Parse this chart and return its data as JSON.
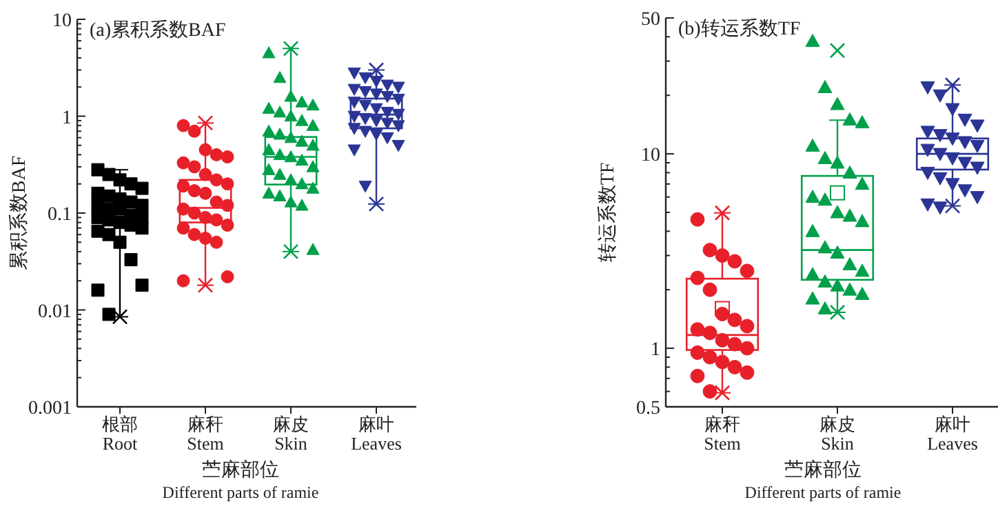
{
  "chart_data": [
    {
      "type": "box",
      "title": "(a)累积系数BAF",
      "ylabel": "累积系数BAF",
      "xlabel": "苎麻部位\nDifferent parts of ramie",
      "log": "y",
      "grid": false,
      "categories": [
        "根部\nRoot",
        "麻秆\nStem",
        "麻皮\nSkin",
        "麻叶\nLeaves"
      ],
      "colors": [
        "#000000",
        "#e8202a",
        "#00a04b",
        "#2b3595"
      ],
      "ylim": [
        0.001,
        10
      ],
      "yticks": [
        0.001,
        0.01,
        0.1,
        1,
        10
      ],
      "boxes": [
        {
          "low": 0.0085,
          "q1": 0.08,
          "median": 0.1,
          "q3": 0.136,
          "high": 0.28,
          "outliers": [
            0.0085
          ]
        },
        {
          "low": 0.018,
          "q1": 0.08,
          "median": 0.113,
          "q3": 0.22,
          "high": 0.85,
          "outliers": [
            0.018,
            0.85
          ]
        },
        {
          "low": 0.04,
          "q1": 0.197,
          "median": 0.38,
          "q3": 0.61,
          "high": 5,
          "outliers": [
            0.04,
            5
          ]
        },
        {
          "low": 0.124,
          "q1": 0.75,
          "median": 1.04,
          "q3": 1.52,
          "high": 3,
          "outliers": [
            0.124,
            3
          ]
        }
      ],
      "series": [
        {
          "type": "scatter",
          "color": "#000000",
          "marker": "square",
          "x": [
            "根部\nRoot",
            "根部\nRoot",
            "根部\nRoot",
            "根部\nRoot",
            "根部\nRoot",
            "根部\nRoot",
            "根部\nRoot",
            "根部\nRoot",
            "根部\nRoot",
            "根部\nRoot",
            "根部\nRoot",
            "根部\nRoot",
            "根部\nRoot",
            "根部\nRoot",
            "根部\nRoot",
            "根部\nRoot",
            "根部\nRoot",
            "根部\nRoot",
            "根部\nRoot",
            "根部\nRoot",
            "根部\nRoot",
            "根部\nRoot",
            "根部\nRoot",
            "根部\nRoot",
            "根部\nRoot",
            "根部\nRoot",
            "根部\nRoot"
          ],
          "values": [
            0.28,
            0.25,
            0.22,
            0.2,
            0.18,
            0.16,
            0.15,
            0.14,
            0.13,
            0.12,
            0.12,
            0.11,
            0.11,
            0.095,
            0.09,
            0.09,
            0.085,
            0.08,
            0.075,
            0.07,
            0.065,
            0.06,
            0.05,
            0.033,
            0.018,
            0.016,
            0.009
          ]
        },
        {
          "type": "scatter",
          "color": "#e8202a",
          "marker": "circle",
          "x": [
            "麻秆\nStem",
            "麻秆\nStem",
            "麻秆\nStem",
            "麻秆\nStem",
            "麻秆\nStem",
            "麻秆\nStem",
            "麻秆\nStem",
            "麻秆\nStem",
            "麻秆\nStem",
            "麻秆\nStem",
            "麻秆\nStem",
            "麻秆\nStem",
            "麻秆\nStem",
            "麻秆\nStem",
            "麻秆\nStem",
            "麻秆\nStem",
            "麻秆\nStem",
            "麻秆\nStem",
            "麻秆\nStem",
            "麻秆\nStem",
            "麻秆\nStem",
            "麻秆\nStem",
            "麻秆\nStem",
            "麻秆\nStem",
            "麻秆\nStem",
            "麻秆\nStem"
          ],
          "values": [
            0.8,
            0.7,
            0.45,
            0.4,
            0.38,
            0.33,
            0.3,
            0.25,
            0.22,
            0.2,
            0.19,
            0.17,
            0.16,
            0.13,
            0.12,
            0.11,
            0.1,
            0.09,
            0.085,
            0.075,
            0.07,
            0.06,
            0.055,
            0.05,
            0.022,
            0.02
          ]
        },
        {
          "type": "scatter",
          "color": "#00a04b",
          "marker": "triangle",
          "x": [
            "麻皮\nSkin",
            "麻皮\nSkin",
            "麻皮\nSkin",
            "麻皮\nSkin",
            "麻皮\nSkin",
            "麻皮\nSkin",
            "麻皮\nSkin",
            "麻皮\nSkin",
            "麻皮\nSkin",
            "麻皮\nSkin",
            "麻皮\nSkin",
            "麻皮\nSkin",
            "麻皮\nSkin",
            "麻皮\nSkin",
            "麻皮\nSkin",
            "麻皮\nSkin",
            "麻皮\nSkin",
            "麻皮\nSkin",
            "麻皮\nSkin",
            "麻皮\nSkin",
            "麻皮\nSkin",
            "麻皮\nSkin",
            "麻皮\nSkin",
            "麻皮\nSkin",
            "麻皮\nSkin",
            "麻皮\nSkin",
            "麻皮\nSkin",
            "麻皮\nSkin",
            "麻皮\nSkin",
            "麻皮\nSkin"
          ],
          "values": [
            4.5,
            2.5,
            1.6,
            1.4,
            1.3,
            1.2,
            1.1,
            1,
            0.9,
            0.8,
            0.7,
            0.65,
            0.6,
            0.55,
            0.5,
            0.45,
            0.4,
            0.38,
            0.35,
            0.3,
            0.28,
            0.25,
            0.22,
            0.2,
            0.18,
            0.16,
            0.15,
            0.13,
            0.12,
            0.042
          ]
        },
        {
          "type": "scatter",
          "color": "#2b3595",
          "marker": "triangle_down",
          "x": [
            "麻叶\nLeaves",
            "麻叶\nLeaves",
            "麻叶\nLeaves",
            "麻叶\nLeaves",
            "麻叶\nLeaves",
            "麻叶\nLeaves",
            "麻叶\nLeaves",
            "麻叶\nLeaves",
            "麻叶\nLeaves",
            "麻叶\nLeaves",
            "麻叶\nLeaves",
            "麻叶\nLeaves",
            "麻叶\nLeaves",
            "麻叶\nLeaves",
            "麻叶\nLeaves",
            "麻叶\nLeaves",
            "麻叶\nLeaves",
            "麻叶\nLeaves",
            "麻叶\nLeaves",
            "麻叶\nLeaves",
            "麻叶\nLeaves",
            "麻叶\nLeaves",
            "麻叶\nLeaves",
            "麻叶\nLeaves",
            "麻叶\nLeaves",
            "麻叶\nLeaves",
            "麻叶\nLeaves"
          ],
          "values": [
            2.8,
            2.5,
            2.3,
            2.1,
            2,
            1.9,
            1.8,
            1.7,
            1.6,
            1.5,
            1.4,
            1.3,
            1.2,
            1.1,
            1.05,
            1,
            0.95,
            0.9,
            0.85,
            0.8,
            0.75,
            0.7,
            0.65,
            0.6,
            0.5,
            0.45,
            0.19
          ]
        }
      ]
    },
    {
      "type": "box",
      "title": "(b)转运系数TF",
      "ylabel": "转运系数TF",
      "xlabel": "苎麻部位\nDifferent parts of ramie",
      "log": "y",
      "grid": false,
      "categories": [
        "麻秆\nStem",
        "麻皮\nSkin",
        "麻叶\nLeaves"
      ],
      "colors": [
        "#e8202a",
        "#00a04b",
        "#2b3595"
      ],
      "ylim": [
        0.5,
        50
      ],
      "yticks": [
        0.5,
        1,
        10,
        50
      ],
      "boxes": [
        {
          "low": 0.59,
          "q1": 0.98,
          "median": 1.17,
          "q3": 2.28,
          "high": 4.97,
          "mean": 1.6,
          "outliers": [
            0.59,
            4.97
          ]
        },
        {
          "low": 1.53,
          "q1": 2.25,
          "median": 3.2,
          "q3": 7.7,
          "high": 14.9,
          "mean": 6.3,
          "outliers": [
            1.53,
            34
          ]
        },
        {
          "low": 5.4,
          "q1": 8.3,
          "median": 10,
          "q3": 12,
          "high": 22.6,
          "outliers": [
            5.4,
            22.6
          ]
        }
      ],
      "series": [
        {
          "type": "scatter",
          "color": "#e8202a",
          "marker": "circle",
          "x": [
            "麻秆\nStem",
            "麻秆\nStem",
            "麻秆\nStem",
            "麻秆\nStem",
            "麻秆\nStem",
            "麻秆\nStem",
            "麻秆\nStem",
            "麻秆\nStem",
            "麻秆\nStem",
            "麻秆\nStem",
            "麻秆\nStem",
            "麻秆\nStem",
            "麻秆\nStem",
            "麻秆\nStem",
            "麻秆\nStem",
            "麻秆\nStem",
            "麻秆\nStem",
            "麻秆\nStem",
            "麻秆\nStem",
            "麻秆\nStem",
            "麻秆\nStem",
            "麻秆\nStem"
          ],
          "values": [
            4.6,
            3.2,
            3,
            2.8,
            2.5,
            2.3,
            2,
            1.5,
            1.4,
            1.3,
            1.25,
            1.2,
            1.1,
            1.05,
            1,
            0.95,
            0.9,
            0.85,
            0.8,
            0.75,
            0.72,
            0.6
          ]
        },
        {
          "type": "scatter",
          "color": "#00a04b",
          "marker": "triangle",
          "x": [
            "麻皮\nSkin",
            "麻皮\nSkin",
            "麻皮\nSkin",
            "麻皮\nSkin",
            "麻皮\nSkin",
            "麻皮\nSkin",
            "麻皮\nSkin",
            "麻皮\nSkin",
            "麻皮\nSkin",
            "麻皮\nSkin",
            "麻皮\nSkin",
            "麻皮\nSkin",
            "麻皮\nSkin",
            "麻皮\nSkin",
            "麻皮\nSkin",
            "麻皮\nSkin",
            "麻皮\nSkin",
            "麻皮\nSkin",
            "麻皮\nSkin",
            "麻皮\nSkin",
            "麻皮\nSkin",
            "麻皮\nSkin",
            "麻皮\nSkin",
            "麻皮\nSkin",
            "麻皮\nSkin",
            "麻皮\nSkin",
            "麻皮\nSkin"
          ],
          "values": [
            38,
            22,
            18,
            15,
            14.5,
            11,
            9.5,
            9,
            8,
            7,
            6,
            5.8,
            5,
            4.8,
            4.5,
            4,
            3.3,
            3.1,
            2.7,
            2.5,
            2.4,
            2.2,
            2.1,
            2,
            1.9,
            1.8,
            1.6
          ]
        },
        {
          "type": "scatter",
          "color": "#2b3595",
          "marker": "triangle_down",
          "x": [
            "麻叶\nLeaves",
            "麻叶\nLeaves",
            "麻叶\nLeaves",
            "麻叶\nLeaves",
            "麻叶\nLeaves",
            "麻叶\nLeaves",
            "麻叶\nLeaves",
            "麻叶\nLeaves",
            "麻叶\nLeaves",
            "麻叶\nLeaves",
            "麻叶\nLeaves",
            "麻叶\nLeaves",
            "麻叶\nLeaves",
            "麻叶\nLeaves",
            "麻叶\nLeaves",
            "麻叶\nLeaves",
            "麻叶\nLeaves",
            "麻叶\nLeaves",
            "麻叶\nLeaves",
            "麻叶\nLeaves",
            "麻叶\nLeaves",
            "麻叶\nLeaves"
          ],
          "values": [
            22,
            20,
            17,
            15,
            14,
            13,
            12.5,
            12,
            11.5,
            11,
            10.5,
            10,
            9.5,
            9,
            8.5,
            8,
            7.5,
            7,
            6.5,
            6,
            5.5,
            5.3
          ]
        }
      ]
    }
  ]
}
